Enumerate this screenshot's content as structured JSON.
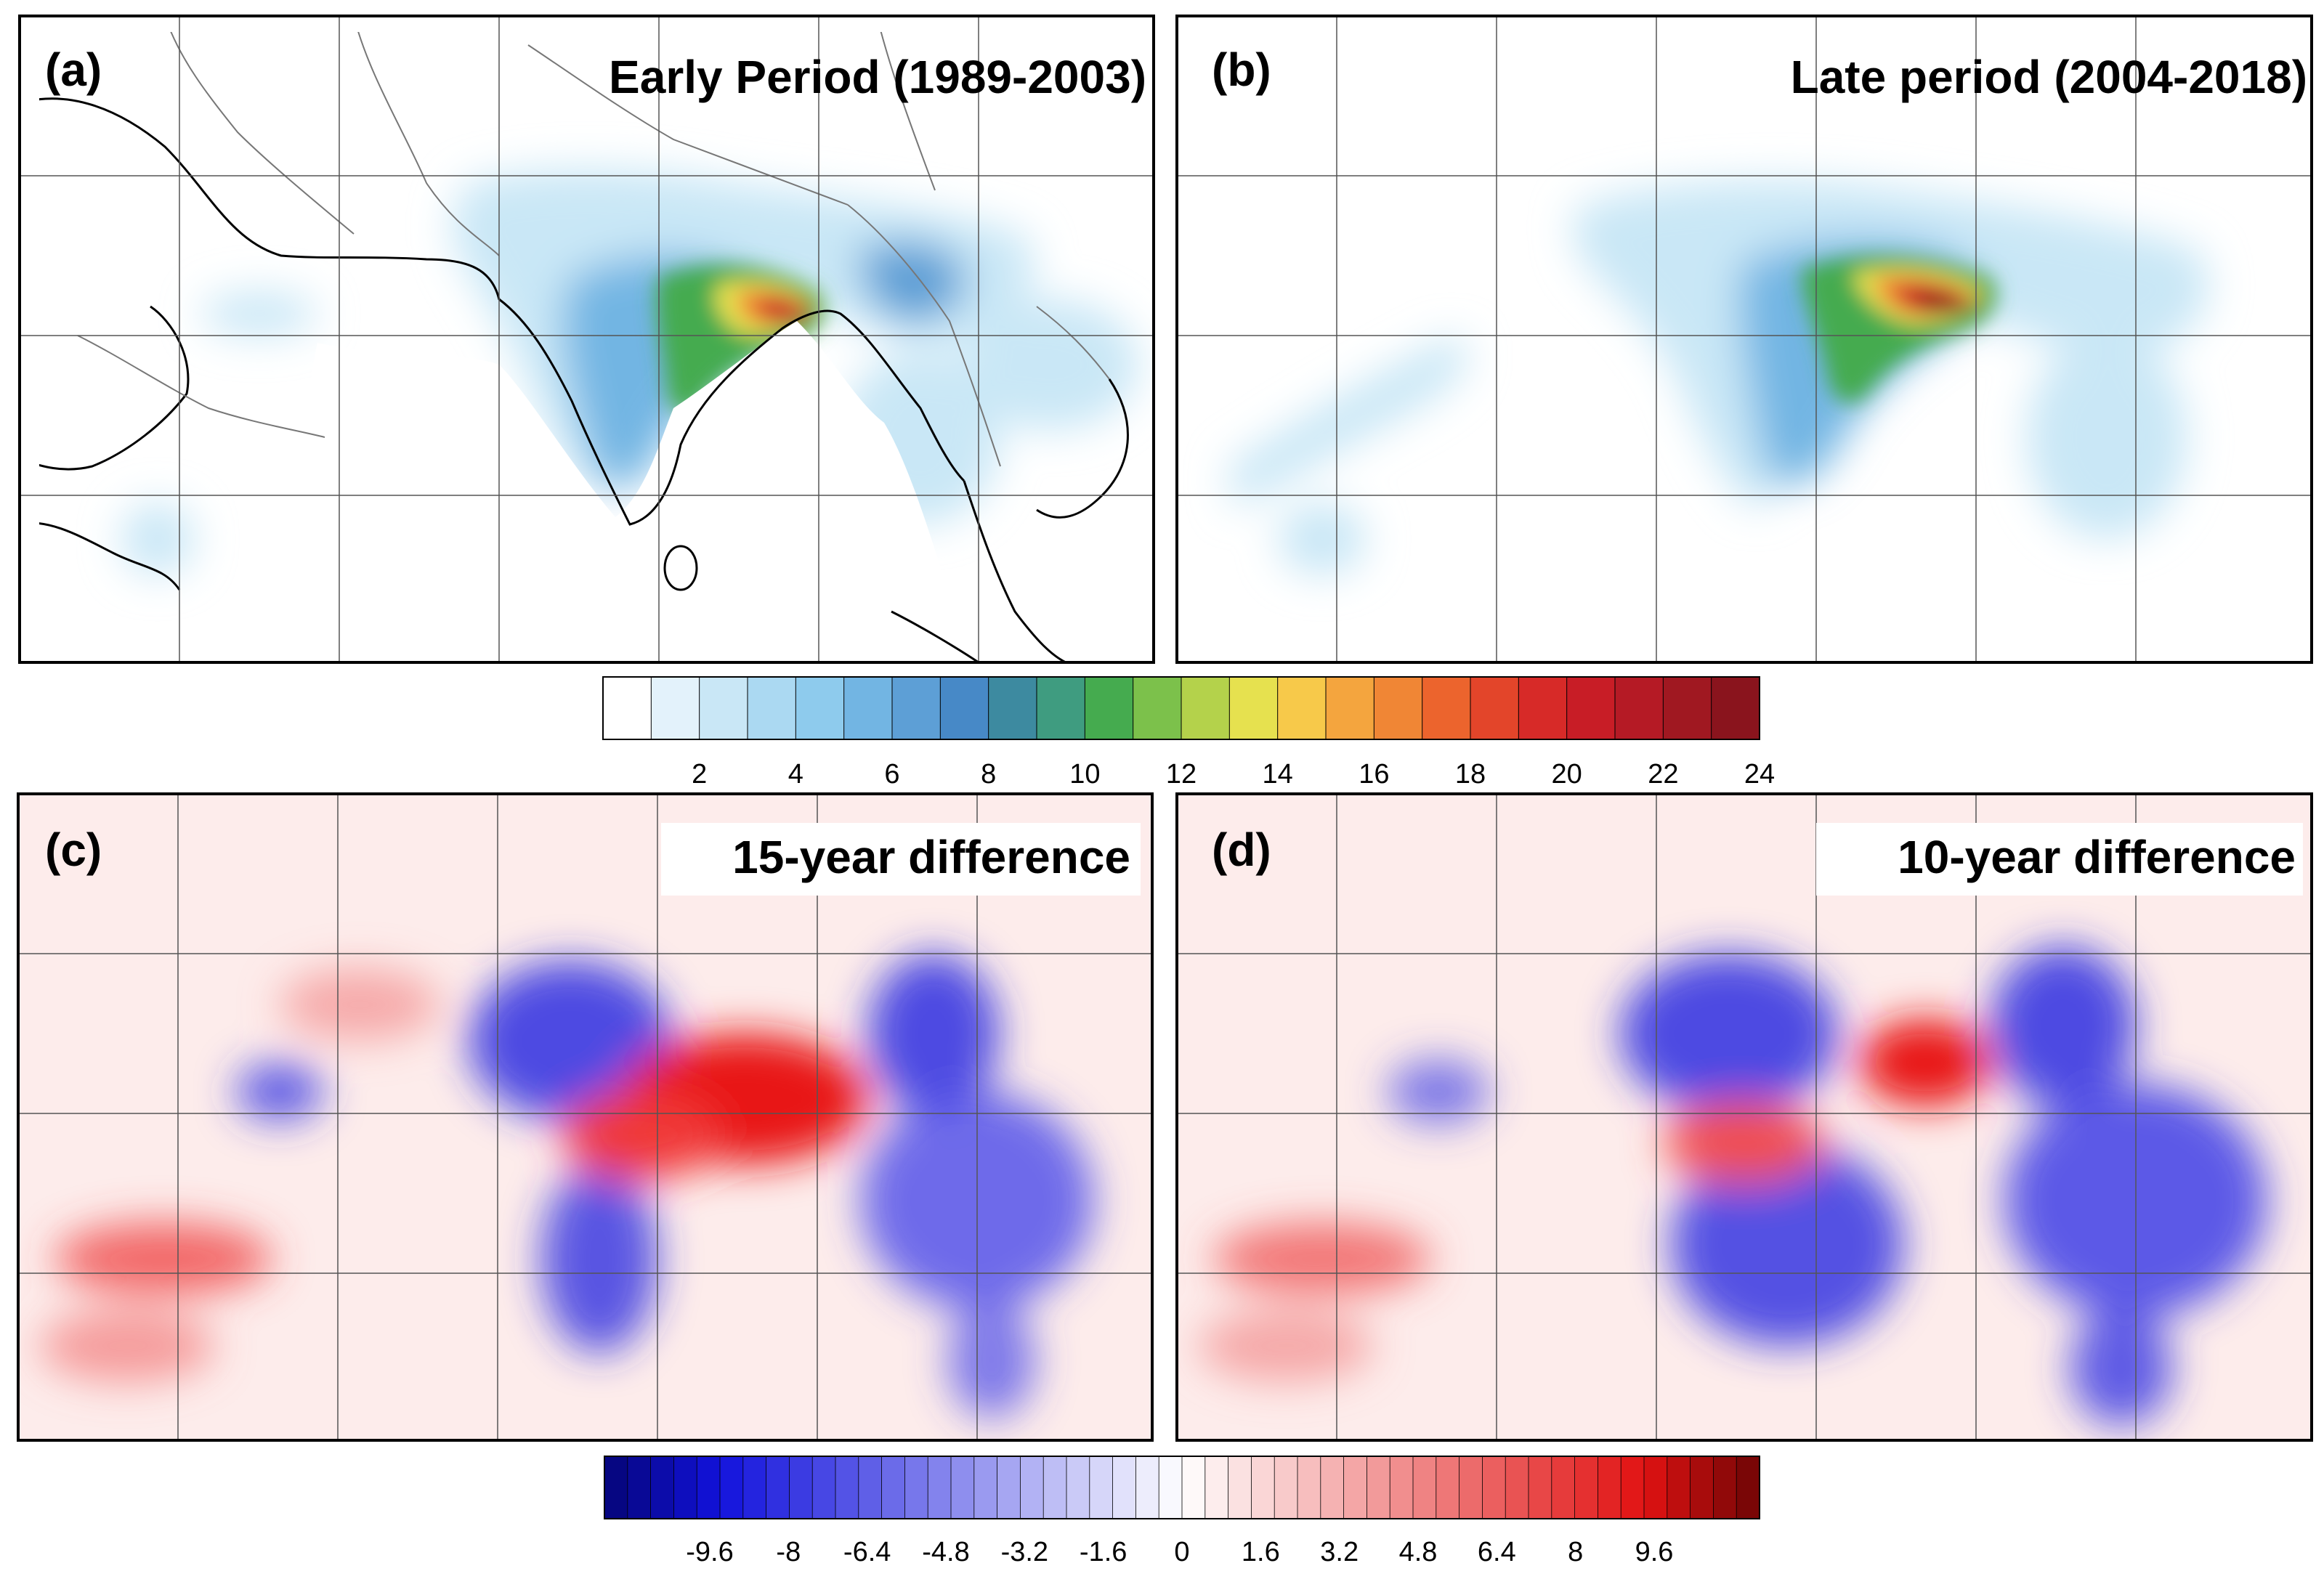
{
  "figure": {
    "panels": [
      {
        "label": "(a)",
        "title": "Early Period (1989-2003)",
        "kind": "mean"
      },
      {
        "label": "(b)",
        "title": "Late period (2004-2018)",
        "kind": "mean"
      },
      {
        "label": "(c)",
        "title": "15-year difference",
        "kind": "diff"
      },
      {
        "label": "(d)",
        "title": "10-year difference",
        "kind": "diff"
      }
    ]
  },
  "colorbars": {
    "mean": {
      "ticks": [
        "2",
        "4",
        "6",
        "8",
        "10",
        "12",
        "14",
        "16",
        "18",
        "20",
        "22",
        "24"
      ],
      "colors": [
        "#ffffff",
        "#e3f2fb",
        "#c9e7f6",
        "#abd9f2",
        "#8ecbed",
        "#72b5e3",
        "#5d9fd6",
        "#4789c7",
        "#3d8aa0",
        "#3f9c80",
        "#45ab4f",
        "#7cc14b",
        "#b4d24b",
        "#e6e14f",
        "#f7c94a",
        "#f4a53e",
        "#f08635",
        "#ec642d",
        "#e3452a",
        "#d72a28",
        "#c81d26",
        "#b51a25",
        "#a01821",
        "#8a141d"
      ]
    },
    "diff": {
      "ticks": [
        "-9.6",
        "-8",
        "-6.4",
        "-4.8",
        "-3.2",
        "-1.6",
        "0",
        "1.6",
        "3.2",
        "4.8",
        "6.4",
        "8",
        "9.6"
      ]
    }
  },
  "colors": {
    "diff_negative": "#1f1fd6",
    "diff_positive": "#e81818",
    "land_outline": "#000000",
    "grid": "#555555"
  }
}
